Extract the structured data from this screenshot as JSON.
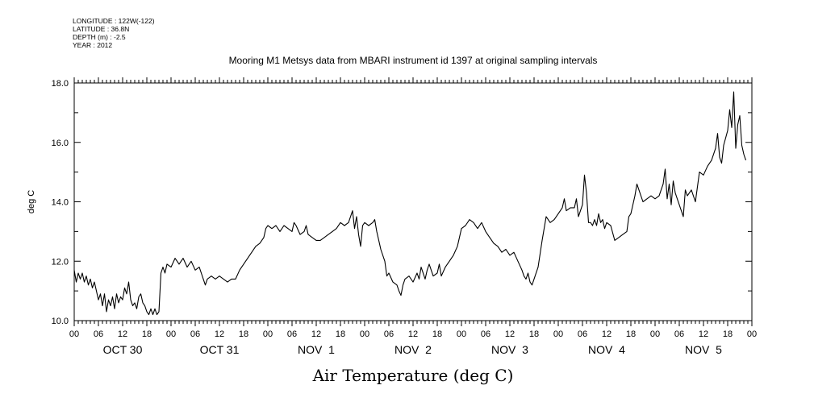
{
  "header": {
    "longitude": "LONGITUDE : 122W(-122)",
    "latitude": "LATITUDE : 36.8N",
    "depth": "DEPTH (m) : -2.5",
    "year": "YEAR : 2012"
  },
  "chart_data": {
    "type": "line",
    "title": "Mooring M1 Metsys data from MBARI instrument id 1397 at original sampling intervals",
    "xlabel": "Air Temperature (deg C)",
    "ylabel": "deg C",
    "ylim": [
      10.0,
      18.0
    ],
    "yticks": [
      "10.0",
      "12.0",
      "14.0",
      "16.0",
      "18.0"
    ],
    "x_hour_ticks": [
      "00",
      "06",
      "12",
      "18",
      "00",
      "06",
      "12",
      "18",
      "00",
      "06",
      "12",
      "18",
      "00",
      "06",
      "12",
      "18",
      "00",
      "06",
      "12",
      "18",
      "00",
      "06",
      "12",
      "18",
      "00",
      "06",
      "12",
      "18",
      "00"
    ],
    "x_day_labels": [
      "OCT 30",
      "OCT 31",
      "NOV  1",
      "NOV  2",
      "NOV  3",
      "NOV  4",
      "NOV  5"
    ],
    "x_unit": "hours since OCT 30 00:00",
    "xlim": [
      0,
      168
    ],
    "grid": false,
    "series": [
      {
        "color": "#000000",
        "points": [
          [
            0,
            11.7
          ],
          [
            0.5,
            11.3
          ],
          [
            1,
            11.6
          ],
          [
            1.5,
            11.4
          ],
          [
            2,
            11.6
          ],
          [
            2.5,
            11.3
          ],
          [
            3,
            11.5
          ],
          [
            3.5,
            11.2
          ],
          [
            4,
            11.4
          ],
          [
            4.5,
            11.1
          ],
          [
            5,
            11.3
          ],
          [
            5.5,
            11.0
          ],
          [
            6,
            10.7
          ],
          [
            6.5,
            10.9
          ],
          [
            7,
            10.5
          ],
          [
            7.5,
            10.9
          ],
          [
            8,
            10.3
          ],
          [
            8.5,
            10.7
          ],
          [
            9,
            10.5
          ],
          [
            9.5,
            10.8
          ],
          [
            10,
            10.4
          ],
          [
            10.5,
            10.9
          ],
          [
            11,
            10.6
          ],
          [
            11.5,
            10.8
          ],
          [
            12,
            10.7
          ],
          [
            12.5,
            11.1
          ],
          [
            13,
            10.9
          ],
          [
            13.5,
            11.3
          ],
          [
            14,
            10.7
          ],
          [
            14.5,
            10.5
          ],
          [
            15,
            10.6
          ],
          [
            15.5,
            10.4
          ],
          [
            16,
            10.8
          ],
          [
            16.5,
            10.9
          ],
          [
            17,
            10.6
          ],
          [
            17.5,
            10.5
          ],
          [
            18,
            10.3
          ],
          [
            18.5,
            10.2
          ],
          [
            19,
            10.4
          ],
          [
            19.5,
            10.2
          ],
          [
            20,
            10.4
          ],
          [
            20.5,
            10.2
          ],
          [
            21,
            10.3
          ],
          [
            21.5,
            11.6
          ],
          [
            22,
            11.8
          ],
          [
            22.5,
            11.6
          ],
          [
            23,
            11.9
          ],
          [
            24,
            11.8
          ],
          [
            25,
            12.1
          ],
          [
            26,
            11.9
          ],
          [
            27,
            12.1
          ],
          [
            28,
            11.8
          ],
          [
            29,
            12.0
          ],
          [
            30,
            11.7
          ],
          [
            31,
            11.8
          ],
          [
            31.5,
            11.6
          ],
          [
            32,
            11.4
          ],
          [
            32.5,
            11.2
          ],
          [
            33,
            11.4
          ],
          [
            34,
            11.5
          ],
          [
            35,
            11.4
          ],
          [
            36,
            11.5
          ],
          [
            37,
            11.4
          ],
          [
            38,
            11.3
          ],
          [
            39,
            11.4
          ],
          [
            40,
            11.4
          ],
          [
            41,
            11.7
          ],
          [
            42,
            11.9
          ],
          [
            43,
            12.1
          ],
          [
            44,
            12.3
          ],
          [
            45,
            12.5
          ],
          [
            46,
            12.6
          ],
          [
            47,
            12.8
          ],
          [
            47.5,
            13.1
          ],
          [
            48,
            13.2
          ],
          [
            49,
            13.1
          ],
          [
            50,
            13.2
          ],
          [
            51,
            13.0
          ],
          [
            52,
            13.2
          ],
          [
            53,
            13.1
          ],
          [
            54,
            13.0
          ],
          [
            54.5,
            13.3
          ],
          [
            55,
            13.2
          ],
          [
            56,
            12.9
          ],
          [
            57,
            13.0
          ],
          [
            57.5,
            13.2
          ],
          [
            58,
            12.9
          ],
          [
            59,
            12.8
          ],
          [
            60,
            12.7
          ],
          [
            61,
            12.7
          ],
          [
            62,
            12.8
          ],
          [
            63,
            12.9
          ],
          [
            64,
            13.0
          ],
          [
            65,
            13.1
          ],
          [
            66,
            13.3
          ],
          [
            67,
            13.2
          ],
          [
            68,
            13.3
          ],
          [
            69,
            13.7
          ],
          [
            69.5,
            13.1
          ],
          [
            70,
            13.5
          ],
          [
            70.5,
            12.9
          ],
          [
            71,
            12.5
          ],
          [
            71.5,
            13.2
          ],
          [
            72,
            13.3
          ],
          [
            73,
            13.2
          ],
          [
            74,
            13.3
          ],
          [
            74.5,
            13.4
          ],
          [
            75,
            13.0
          ],
          [
            75.5,
            12.7
          ],
          [
            76,
            12.4
          ],
          [
            77,
            12.0
          ],
          [
            77.5,
            11.5
          ],
          [
            78,
            11.6
          ],
          [
            79,
            11.3
          ],
          [
            80,
            11.2
          ],
          [
            80.5,
            11.0
          ],
          [
            81,
            10.85
          ],
          [
            81.5,
            11.2
          ],
          [
            82,
            11.4
          ],
          [
            83,
            11.5
          ],
          [
            84,
            11.3
          ],
          [
            85,
            11.6
          ],
          [
            85.5,
            11.4
          ],
          [
            86,
            11.8
          ],
          [
            87,
            11.4
          ],
          [
            87.5,
            11.7
          ],
          [
            88,
            11.9
          ],
          [
            89,
            11.5
          ],
          [
            90,
            11.6
          ],
          [
            90.5,
            11.9
          ],
          [
            91,
            11.5
          ],
          [
            92,
            11.8
          ],
          [
            93,
            12.0
          ],
          [
            94,
            12.2
          ],
          [
            95,
            12.5
          ],
          [
            95.5,
            12.8
          ],
          [
            96,
            13.1
          ],
          [
            97,
            13.2
          ],
          [
            98,
            13.4
          ],
          [
            99,
            13.3
          ],
          [
            100,
            13.1
          ],
          [
            101,
            13.3
          ],
          [
            102,
            13.0
          ],
          [
            103,
            12.8
          ],
          [
            104,
            12.6
          ],
          [
            105,
            12.5
          ],
          [
            106,
            12.3
          ],
          [
            107,
            12.4
          ],
          [
            108,
            12.2
          ],
          [
            109,
            12.3
          ],
          [
            110,
            12.0
          ],
          [
            111,
            11.7
          ],
          [
            111.5,
            11.5
          ],
          [
            112,
            11.4
          ],
          [
            112.5,
            11.6
          ],
          [
            113,
            11.3
          ],
          [
            113.5,
            11.2
          ],
          [
            114,
            11.4
          ],
          [
            115,
            11.8
          ],
          [
            116,
            12.7
          ],
          [
            117,
            13.5
          ],
          [
            118,
            13.3
          ],
          [
            119,
            13.4
          ],
          [
            120,
            13.6
          ],
          [
            121,
            13.8
          ],
          [
            121.5,
            14.1
          ],
          [
            122,
            13.7
          ],
          [
            123,
            13.8
          ],
          [
            124,
            13.8
          ],
          [
            124.5,
            14.1
          ],
          [
            125,
            13.5
          ],
          [
            126,
            13.9
          ],
          [
            126.5,
            14.9
          ],
          [
            127,
            14.3
          ],
          [
            127.5,
            13.3
          ],
          [
            128,
            13.3
          ],
          [
            128.5,
            13.2
          ],
          [
            129,
            13.4
          ],
          [
            129.5,
            13.2
          ],
          [
            130,
            13.6
          ],
          [
            130.5,
            13.3
          ],
          [
            131,
            13.4
          ],
          [
            131.5,
            13.1
          ],
          [
            132,
            13.3
          ],
          [
            133,
            13.2
          ],
          [
            134,
            12.7
          ],
          [
            135,
            12.8
          ],
          [
            136,
            12.9
          ],
          [
            137,
            13.0
          ],
          [
            137.5,
            13.5
          ],
          [
            138,
            13.6
          ],
          [
            139,
            14.2
          ],
          [
            139.5,
            14.6
          ],
          [
            140,
            14.4
          ],
          [
            141,
            14.0
          ],
          [
            142,
            14.1
          ],
          [
            143,
            14.2
          ],
          [
            144,
            14.1
          ],
          [
            145,
            14.2
          ],
          [
            146,
            14.6
          ],
          [
            146.5,
            15.1
          ],
          [
            147,
            14.1
          ],
          [
            147.5,
            14.6
          ],
          [
            148,
            13.9
          ],
          [
            148.5,
            14.7
          ],
          [
            149,
            14.3
          ],
          [
            150,
            13.9
          ],
          [
            151,
            13.5
          ],
          [
            151.5,
            14.4
          ],
          [
            152,
            14.2
          ],
          [
            153,
            14.4
          ],
          [
            154,
            14.0
          ],
          [
            155,
            15.0
          ],
          [
            156,
            14.9
          ],
          [
            157,
            15.2
          ],
          [
            158,
            15.4
          ],
          [
            159,
            15.8
          ],
          [
            159.5,
            16.3
          ],
          [
            160,
            15.5
          ],
          [
            160.5,
            15.3
          ],
          [
            161,
            15.9
          ],
          [
            162,
            16.4
          ],
          [
            162.5,
            17.1
          ],
          [
            163,
            16.5
          ],
          [
            163.5,
            17.7
          ],
          [
            164,
            15.8
          ],
          [
            164.5,
            16.6
          ],
          [
            165,
            16.9
          ],
          [
            165.5,
            15.9
          ],
          [
            166,
            15.6
          ],
          [
            166.5,
            15.4
          ]
        ]
      }
    ]
  }
}
